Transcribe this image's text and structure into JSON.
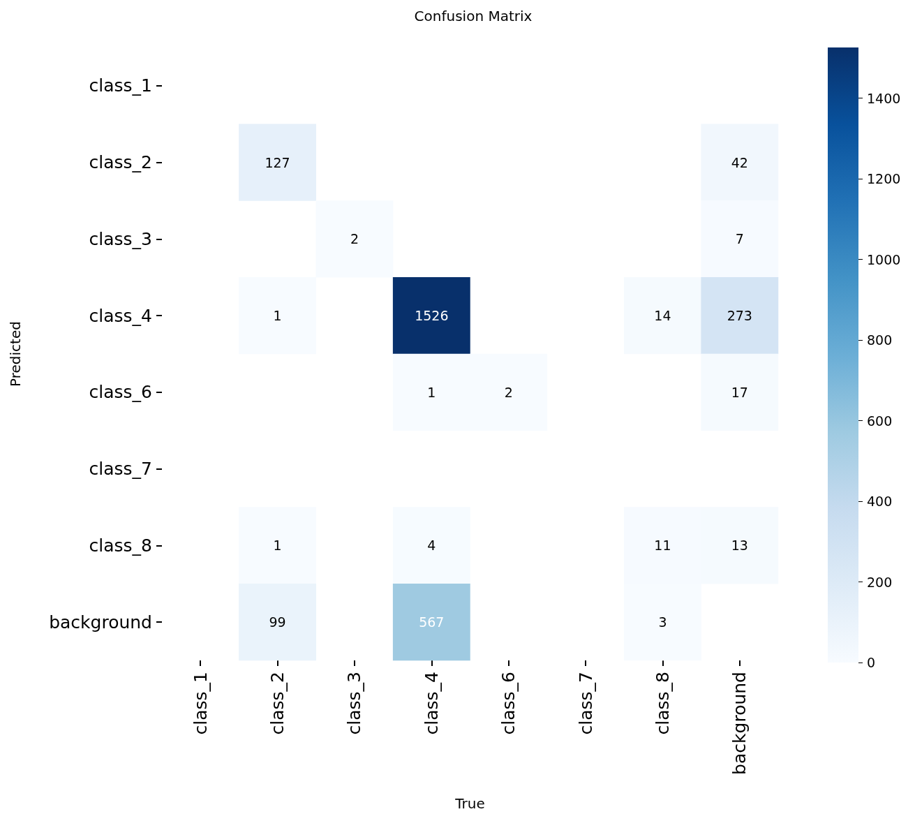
{
  "chart_data": {
    "type": "heatmap",
    "title": "Confusion Matrix",
    "xlabel": "True",
    "ylabel": "Predicted",
    "categories": [
      "class_1",
      "class_2",
      "class_3",
      "class_4",
      "class_6",
      "class_7",
      "class_8",
      "background"
    ],
    "y_categories": [
      "class_1",
      "class_2",
      "class_3",
      "class_4",
      "class_6",
      "class_7",
      "class_8",
      "background"
    ],
    "cells": [
      [
        null,
        null,
        null,
        null,
        null,
        null,
        null,
        null
      ],
      [
        null,
        127,
        null,
        null,
        null,
        null,
        null,
        42
      ],
      [
        null,
        null,
        2,
        null,
        null,
        null,
        null,
        7
      ],
      [
        null,
        1,
        null,
        1526,
        null,
        null,
        14,
        273
      ],
      [
        null,
        null,
        null,
        1,
        2,
        null,
        null,
        17
      ],
      [
        null,
        null,
        null,
        null,
        null,
        null,
        null,
        null
      ],
      [
        null,
        1,
        null,
        4,
        null,
        null,
        11,
        13
      ],
      [
        null,
        99,
        null,
        567,
        null,
        null,
        3,
        null
      ]
    ],
    "clim": [
      0,
      1526
    ],
    "cticks": [
      0,
      200,
      400,
      600,
      800,
      1000,
      1200,
      1400
    ],
    "data_labels": true
  }
}
